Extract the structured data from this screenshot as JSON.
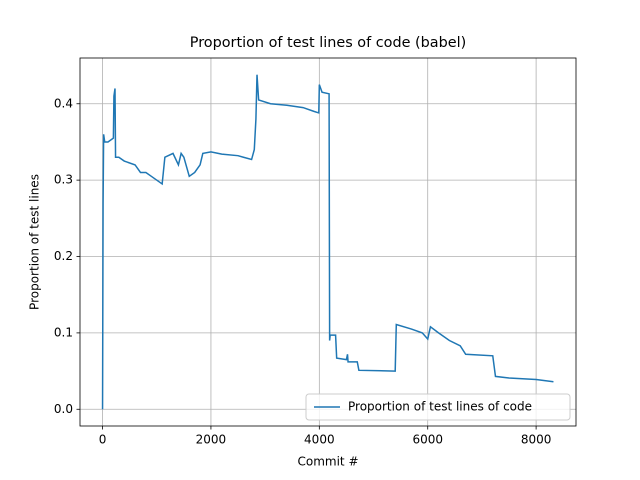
{
  "chart_data": {
    "type": "line",
    "title": "Proportion of test lines of code (babel)",
    "x_label": "Commit #",
    "y_label": "Proportion of test lines",
    "x": [
      0,
      10,
      20,
      40,
      100,
      200,
      210,
      230,
      240,
      300,
      400,
      600,
      700,
      800,
      900,
      1100,
      1150,
      1300,
      1400,
      1450,
      1500,
      1600,
      1700,
      1800,
      1850,
      2000,
      2200,
      2500,
      2600,
      2750,
      2800,
      2830,
      2850,
      2880,
      3100,
      3400,
      3700,
      3900,
      3990,
      4000,
      4050,
      4180,
      4190,
      4200,
      4300,
      4320,
      4500,
      4520,
      4530,
      4700,
      4730,
      5400,
      5420,
      5700,
      5900,
      6000,
      6050,
      6200,
      6400,
      6600,
      6700,
      7200,
      7250,
      7500,
      8000,
      8320
    ],
    "series": [
      {
        "name": "Proportion of test lines of code",
        "color": "#1f77b4",
        "values": [
          0,
          0.27,
          0.36,
          0.35,
          0.35,
          0.355,
          0.41,
          0.42,
          0.33,
          0.33,
          0.325,
          0.32,
          0.31,
          0.31,
          0.305,
          0.295,
          0.33,
          0.335,
          0.32,
          0.335,
          0.33,
          0.305,
          0.31,
          0.32,
          0.335,
          0.337,
          0.334,
          0.332,
          0.33,
          0.327,
          0.34,
          0.38,
          0.438,
          0.405,
          0.4,
          0.398,
          0.395,
          0.39,
          0.388,
          0.425,
          0.415,
          0.413,
          0.09,
          0.097,
          0.097,
          0.067,
          0.065,
          0.072,
          0.062,
          0.062,
          0.051,
          0.05,
          0.111,
          0.105,
          0.1,
          0.092,
          0.108,
          0.1,
          0.09,
          0.083,
          0.072,
          0.07,
          0.043,
          0.041,
          0.039,
          0.036
        ]
      }
    ],
    "xlim": [
      -416,
      8736
    ],
    "ylim": [
      -0.0219,
      0.4599
    ],
    "xticks": [
      0,
      2000,
      4000,
      6000,
      8000
    ],
    "yticks": [
      {
        "value": 0,
        "label": "0.0"
      },
      0.1,
      0.2,
      0.3,
      0.4
    ],
    "grid": true,
    "legend": "lower right"
  }
}
